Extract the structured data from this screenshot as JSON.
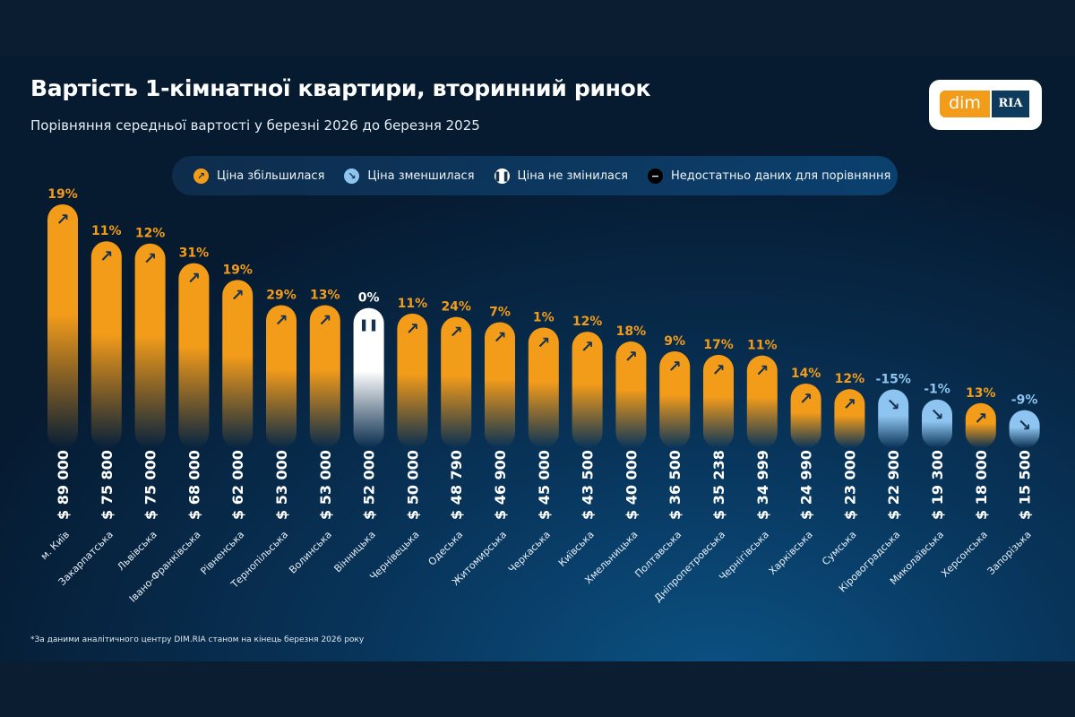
{
  "header": {
    "title": "Вартість 1-кімнатної квартири, вторинний ринок",
    "subtitle": "Порівняння середньої вартості у березні 2026 до березня 2025",
    "logo": {
      "text_left": "dim",
      "text_right": "RIA"
    }
  },
  "legend": [
    {
      "label": "Ціна збільшилася",
      "icon": "arrow-up-right-icon",
      "color": "#f39c1a"
    },
    {
      "label": "Ціна зменшилася",
      "icon": "arrow-down-right-icon",
      "color": "#8ec5f0"
    },
    {
      "label": "Ціна не змінилася",
      "icon": "pause-icon",
      "color": "#ffffff"
    },
    {
      "label": "Недостатньо даних для порівняння",
      "icon": "minus-icon",
      "color": "#000000"
    }
  ],
  "footnote": "*За даними аналітичного центру DIM.RIA станом на кінець березня 2026 року",
  "colors": {
    "increase": "#f39c1a",
    "decrease": "#8ec5f0",
    "unchanged": "#ffffff",
    "icon": "#16324f"
  },
  "chart_data": {
    "type": "bar",
    "title": "Вартість 1-кімнатної квартири, вторинний ринок",
    "ylabel": "",
    "xlabel": "",
    "ylim": [
      0,
      89000
    ],
    "grid": false,
    "unit": "$",
    "categories": [
      "м. Київ",
      "Закарпатська",
      "Львівська",
      "Івано-Франківська",
      "Рівненська",
      "Тернопільська",
      "Волинська",
      "Вінницька",
      "Чернівецька",
      "Одеська",
      "Житомирська",
      "Черкаська",
      "Київська",
      "Хмельницька",
      "Полтавська",
      "Дніпропетровська",
      "Чернігівська",
      "Харківська",
      "Сумська",
      "Кіровоградська",
      "Миколаївська",
      "Херсонська",
      "Запорізька"
    ],
    "values": [
      89000,
      75800,
      75000,
      68000,
      62000,
      53000,
      53000,
      52000,
      50000,
      48790,
      46900,
      45000,
      43500,
      40000,
      36500,
      35238,
      34999,
      24990,
      23000,
      22900,
      19300,
      18000,
      15500
    ],
    "value_labels": [
      "$ 89 000",
      "$ 75 800",
      "$ 75 000",
      "$ 68 000",
      "$ 62 000",
      "$ 53 000",
      "$ 53 000",
      "$ 52 000",
      "$ 50 000",
      "$ 48 790",
      "$ 46 900",
      "$ 45 000",
      "$ 43 500",
      "$ 40 000",
      "$ 36 500",
      "$ 35 238",
      "$ 34 999",
      "$ 24 990",
      "$ 23 000",
      "$ 22 900",
      "$ 19 300",
      "$ 18 000",
      "$ 15 500"
    ],
    "change_pct": [
      19,
      11,
      12,
      31,
      19,
      29,
      13,
      0,
      11,
      24,
      7,
      1,
      12,
      18,
      9,
      17,
      11,
      14,
      12,
      -15,
      -1,
      13,
      -9
    ],
    "change_labels": [
      "19%",
      "11%",
      "12%",
      "31%",
      "19%",
      "29%",
      "13%",
      "0%",
      "11%",
      "24%",
      "7%",
      "1%",
      "12%",
      "18%",
      "9%",
      "17%",
      "11%",
      "14%",
      "12%",
      "-15%",
      "-1%",
      "13%",
      "-9%"
    ]
  }
}
